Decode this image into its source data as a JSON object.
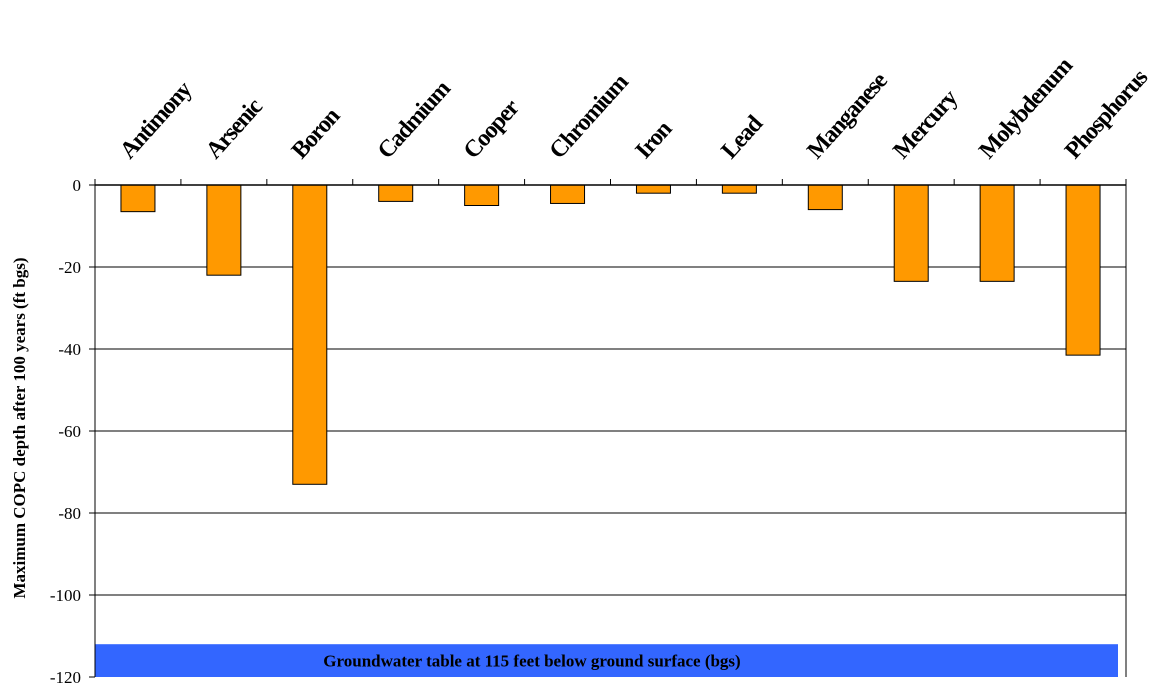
{
  "chart_data": {
    "type": "bar",
    "categories": [
      "Antimony",
      "Arsenic",
      "Boron",
      "Cadmium",
      "Cooper",
      "Chromium",
      "Iron",
      "Lead",
      "Manganese",
      "Mercury",
      "Molybdenum",
      "Phosphorus"
    ],
    "values": [
      -6.5,
      -22,
      -73,
      -4,
      -5,
      -4.5,
      -2,
      -2,
      -6,
      -23.5,
      -23.5,
      -41.5
    ],
    "ylabel": "Maximum COPC depth after 100 years (ft bgs)",
    "xlabel": "",
    "ylim": [
      -120,
      0
    ],
    "yticks": [
      0,
      -20,
      -40,
      -60,
      -80,
      -100,
      -120
    ],
    "grid": true,
    "x_axis_position": "top",
    "bar_color": "#FF9900",
    "annotation": {
      "text": "Groundwater table at 115 feet below ground surface (bgs)",
      "from": -112,
      "to": -120,
      "color": "#3366FF"
    }
  }
}
